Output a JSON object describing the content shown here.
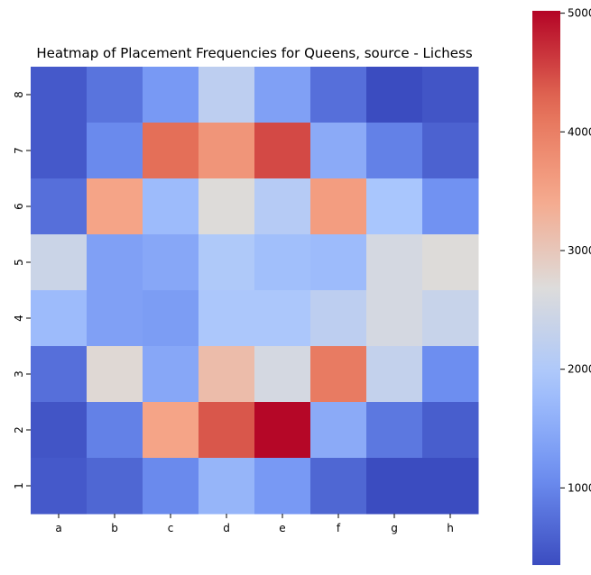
{
  "chart_data": {
    "type": "heatmap",
    "title": "Heatmap of Placement Frequencies for Queens, source - Lichess",
    "x_categories": [
      "a",
      "b",
      "c",
      "d",
      "e",
      "f",
      "g",
      "h"
    ],
    "y_categories": [
      "8",
      "7",
      "6",
      "5",
      "4",
      "3",
      "2",
      "1"
    ],
    "values": [
      [
        5000,
        8000,
        12500,
        22000,
        13500,
        7500,
        3500,
        4500
      ],
      [
        5000,
        10500,
        42000,
        37000,
        45000,
        15000,
        9500,
        6000
      ],
      [
        7500,
        35000,
        17500,
        27000,
        21000,
        36000,
        19000,
        11500
      ],
      [
        24000,
        13500,
        14500,
        20000,
        18000,
        17500,
        25500,
        27000
      ],
      [
        17500,
        13500,
        13000,
        19500,
        19500,
        22000,
        25500,
        23500
      ],
      [
        7500,
        27500,
        14500,
        31500,
        25500,
        40500,
        23000,
        11000
      ],
      [
        4500,
        9500,
        35000,
        44000,
        50000,
        15000,
        8500,
        5500
      ],
      [
        5000,
        6500,
        10500,
        16500,
        12500,
        6500,
        3500,
        3500
      ]
    ],
    "colormap": "coolwarm",
    "colormap_colors": [
      "#3b4cc0",
      "#6f91f2",
      "#a9c6fd",
      "#dddcdb",
      "#f6a789",
      "#e36c55",
      "#b40426"
    ],
    "colorbar": {
      "min": 3500,
      "max": 50200,
      "ticks": [
        10000,
        20000,
        30000,
        40000,
        50000
      ],
      "tick_labels": [
        "10000",
        "20000",
        "30000",
        "40000",
        "50000"
      ]
    },
    "xlabel": "",
    "ylabel": ""
  }
}
